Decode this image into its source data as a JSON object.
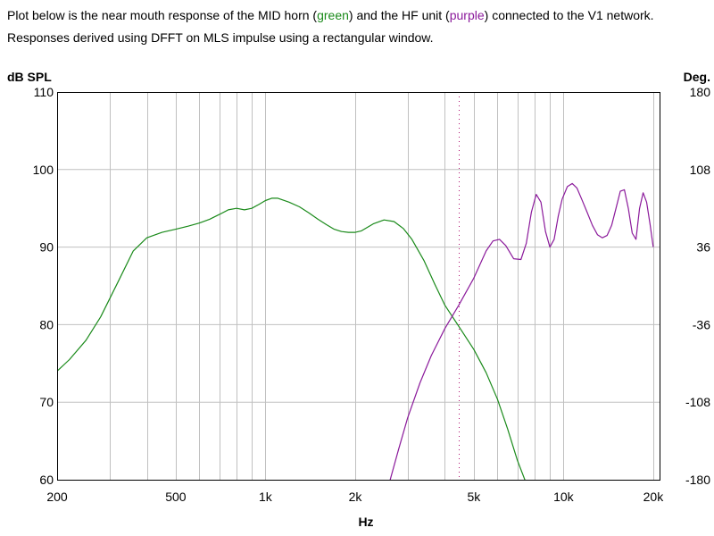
{
  "caption": {
    "line1_pre": "Plot below is the near mouth response of the MID horn (",
    "line1_green": "green",
    "line1_mid": ") and the HF unit (",
    "line1_purple": "purple",
    "line1_post": ") connected to the V1 network.",
    "line2": "Responses derived using DFFT on MLS impulse using a rectangular window."
  },
  "colors": {
    "green": "#1a8a1a",
    "purple": "#8b1a9b",
    "grid": "#c0c0c0",
    "marker": "#b01070"
  },
  "chart_data": {
    "type": "line",
    "title": "",
    "xlabel": "Hz",
    "ylabel": "dB SPL",
    "ylabel_right": "Deg.",
    "x_scale": "log",
    "xlim": [
      200,
      21000
    ],
    "ylim": [
      60,
      110
    ],
    "ylim_right": [
      -180,
      180
    ],
    "grid": true,
    "x_ticks": [
      {
        "value": 200,
        "label": "200"
      },
      {
        "value": 500,
        "label": "500"
      },
      {
        "value": 1000,
        "label": "1k"
      },
      {
        "value": 2000,
        "label": "2k"
      },
      {
        "value": 5000,
        "label": "5k"
      },
      {
        "value": 10000,
        "label": "10k"
      },
      {
        "value": 20000,
        "label": "20k"
      }
    ],
    "x_minor_gridlines": [
      300,
      400,
      600,
      700,
      800,
      900,
      3000,
      4000,
      6000,
      7000,
      8000,
      9000
    ],
    "y_ticks": [
      {
        "value": 60,
        "label": "60"
      },
      {
        "value": 70,
        "label": "70"
      },
      {
        "value": 80,
        "label": "80"
      },
      {
        "value": 90,
        "label": "90"
      },
      {
        "value": 100,
        "label": "100"
      },
      {
        "value": 110,
        "label": "110"
      }
    ],
    "y_ticks_right": [
      {
        "value": -180,
        "label": "-180"
      },
      {
        "value": -108,
        "label": "-108"
      },
      {
        "value": -36,
        "label": "-36"
      },
      {
        "value": 36,
        "label": "36"
      },
      {
        "value": 108,
        "label": "108"
      },
      {
        "value": 180,
        "label": "180"
      }
    ],
    "marker_x": 4450,
    "series": [
      {
        "color": "green",
        "x": [
          200,
          220,
          250,
          280,
          320,
          360,
          400,
          450,
          500,
          550,
          600,
          650,
          700,
          750,
          800,
          850,
          900,
          950,
          1000,
          1050,
          1100,
          1200,
          1300,
          1400,
          1500,
          1600,
          1700,
          1800,
          1900,
          2000,
          2100,
          2300,
          2500,
          2700,
          2900,
          3100,
          3400,
          3700,
          4000,
          4500,
          5000,
          5500,
          6000,
          6500,
          7000,
          7500
        ],
        "y": [
          74.0,
          75.5,
          78.0,
          81.0,
          85.5,
          89.5,
          91.2,
          91.9,
          92.3,
          92.7,
          93.1,
          93.6,
          94.2,
          94.8,
          95.0,
          94.8,
          95.0,
          95.5,
          96.0,
          96.3,
          96.3,
          95.8,
          95.2,
          94.4,
          93.6,
          92.9,
          92.3,
          92.0,
          91.9,
          91.9,
          92.1,
          93.0,
          93.5,
          93.3,
          92.4,
          91.0,
          88.3,
          85.2,
          82.5,
          79.5,
          76.8,
          73.8,
          70.4,
          66.5,
          62.5,
          59.5
        ]
      },
      {
        "color": "purple",
        "x": [
          2600,
          2800,
          3000,
          3300,
          3600,
          4000,
          4450,
          5000,
          5500,
          5800,
          6100,
          6400,
          6800,
          7200,
          7500,
          7800,
          8100,
          8400,
          8700,
          9000,
          9300,
          9600,
          9900,
          10300,
          10700,
          11100,
          11500,
          12000,
          12500,
          13000,
          13500,
          14000,
          14500,
          15000,
          15500,
          16000,
          16500,
          17000,
          17500,
          18000,
          18500,
          19000,
          19500,
          20000
        ],
        "y": [
          59.5,
          64.0,
          68.0,
          72.5,
          76.0,
          79.5,
          82.5,
          86.0,
          89.5,
          90.8,
          91.0,
          90.2,
          88.5,
          88.4,
          90.5,
          94.5,
          96.8,
          95.8,
          92.0,
          90.0,
          91.0,
          94.0,
          96.2,
          97.8,
          98.2,
          97.6,
          96.2,
          94.5,
          92.8,
          91.6,
          91.2,
          91.5,
          92.8,
          95.0,
          97.2,
          97.4,
          95.0,
          91.8,
          91.0,
          95.0,
          97.0,
          95.8,
          93.0,
          90.0
        ]
      }
    ]
  }
}
